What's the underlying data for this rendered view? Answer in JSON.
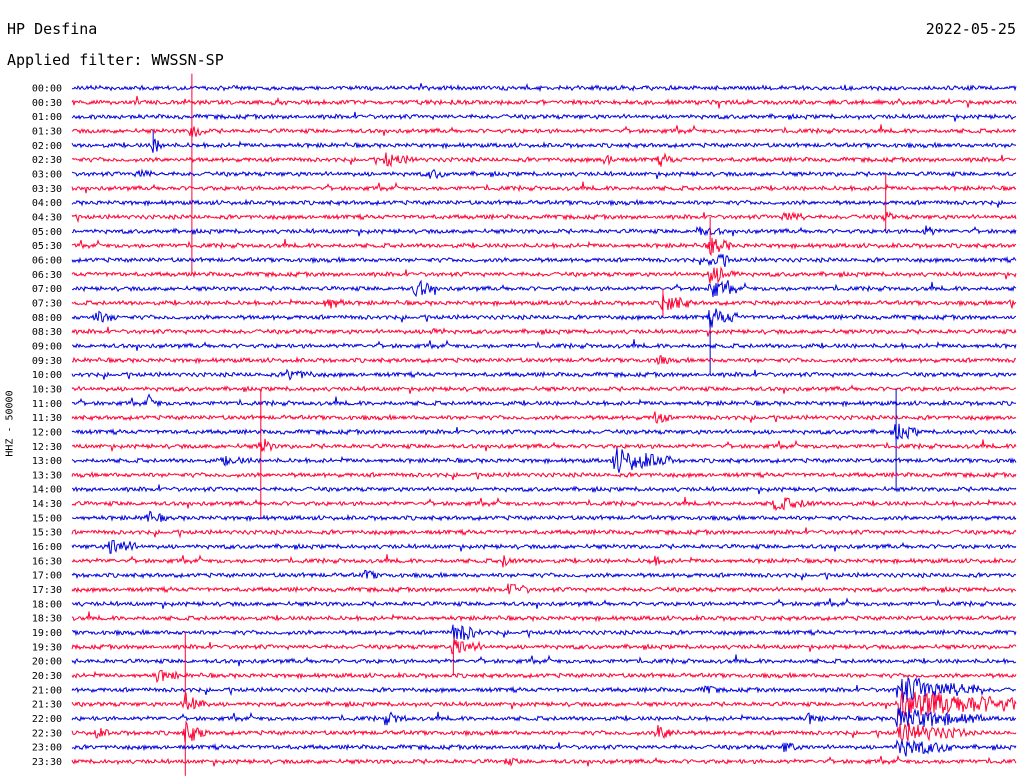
{
  "header": {
    "station": "HP Desfina",
    "filter": "Applied filter: WWSSN-SP",
    "date": "2022-05-25"
  },
  "chart_data": {
    "type": "line",
    "subtype": "helicorder",
    "channel_label": "HHZ - 50000",
    "row_labels": [
      "00:00",
      "00:30",
      "01:00",
      "01:30",
      "02:00",
      "02:30",
      "03:00",
      "03:30",
      "04:00",
      "04:30",
      "05:00",
      "05:30",
      "06:00",
      "06:30",
      "07:00",
      "07:30",
      "08:00",
      "08:30",
      "09:00",
      "09:30",
      "10:00",
      "10:30",
      "11:00",
      "11:30",
      "12:00",
      "12:30",
      "13:00",
      "13:30",
      "14:00",
      "14:30",
      "15:00",
      "15:30",
      "16:00",
      "16:30",
      "17:00",
      "17:30",
      "18:00",
      "18:30",
      "19:00",
      "19:30",
      "20:00",
      "20:30",
      "21:00",
      "21:30",
      "22:00",
      "22:30",
      "23:00",
      "23:30"
    ],
    "colors": [
      "#0000dd",
      "#ff0033"
    ],
    "color_order": "alternating rows, starting with blue",
    "events": [
      {
        "row": 3,
        "x": 0.127,
        "amp": 1.0,
        "dur": 0.01,
        "spike_up": 4,
        "spike_down": 10
      },
      {
        "row": 4,
        "x": 0.086,
        "amp": 0.9,
        "dur": 0.008,
        "spike_up": 1,
        "spike_down": 0
      },
      {
        "row": 5,
        "x": 0.332,
        "amp": 0.7,
        "dur": 0.02
      },
      {
        "row": 5,
        "x": 0.565,
        "amp": 0.5,
        "dur": 0.01
      },
      {
        "row": 5,
        "x": 0.623,
        "amp": 0.6,
        "dur": 0.01
      },
      {
        "row": 6,
        "x": 0.071,
        "amp": 0.5,
        "dur": 0.01
      },
      {
        "row": 6,
        "x": 0.38,
        "amp": 0.5,
        "dur": 0.01
      },
      {
        "row": 9,
        "x": 0.755,
        "amp": 0.6,
        "dur": 0.015
      },
      {
        "row": 9,
        "x": 0.862,
        "amp": 0.8,
        "dur": 0.005,
        "spike_up": 3,
        "spike_down": 1
      },
      {
        "row": 10,
        "x": 0.66,
        "amp": 0.5,
        "dur": 0.02
      },
      {
        "row": 10,
        "x": 0.904,
        "amp": 0.5,
        "dur": 0.01
      },
      {
        "row": 11,
        "x": 0.676,
        "amp": 1.0,
        "dur": 0.015,
        "spike_up": 2,
        "spike_down": 0
      },
      {
        "row": 12,
        "x": 0.676,
        "amp": 1.0,
        "dur": 0.015
      },
      {
        "row": 13,
        "x": 0.676,
        "amp": 1.0,
        "dur": 0.02
      },
      {
        "row": 14,
        "x": 0.364,
        "amp": 1.0,
        "dur": 0.015
      },
      {
        "row": 14,
        "x": 0.676,
        "amp": 1.0,
        "dur": 0.02
      },
      {
        "row": 15,
        "x": 0.268,
        "amp": 0.8,
        "dur": 0.015
      },
      {
        "row": 15,
        "x": 0.626,
        "amp": 1.0,
        "dur": 0.02,
        "spike_up": 1,
        "spike_down": 1
      },
      {
        "row": 15,
        "x": 0.996,
        "amp": 0.6,
        "dur": 0.01
      },
      {
        "row": 16,
        "x": 0.025,
        "amp": 0.6,
        "dur": 0.015
      },
      {
        "row": 16,
        "x": 0.676,
        "amp": 1.0,
        "dur": 0.02,
        "spike_up": 0,
        "spike_down": 4
      },
      {
        "row": 17,
        "x": 0.38,
        "amp": 0.4,
        "dur": 0.01
      },
      {
        "row": 19,
        "x": 0.62,
        "amp": 0.5,
        "dur": 0.01
      },
      {
        "row": 20,
        "x": 0.228,
        "amp": 0.5,
        "dur": 0.02
      },
      {
        "row": 22,
        "x": 0.08,
        "amp": 0.6,
        "dur": 0.01
      },
      {
        "row": 23,
        "x": 0.618,
        "amp": 0.7,
        "dur": 0.01
      },
      {
        "row": 24,
        "x": 0.873,
        "amp": 1.0,
        "dur": 0.015,
        "spike_up": 3,
        "spike_down": 4
      },
      {
        "row": 25,
        "x": 0.2,
        "amp": 1.0,
        "dur": 0.01,
        "spike_up": 4,
        "spike_down": 5
      },
      {
        "row": 26,
        "x": 0.575,
        "amp": 1.4,
        "dur": 0.04
      },
      {
        "row": 26,
        "x": 0.16,
        "amp": 0.4,
        "dur": 0.02
      },
      {
        "row": 29,
        "x": 0.742,
        "amp": 0.7,
        "dur": 0.03
      },
      {
        "row": 30,
        "x": 0.078,
        "amp": 0.6,
        "dur": 0.015
      },
      {
        "row": 32,
        "x": 0.04,
        "amp": 1.0,
        "dur": 0.02
      },
      {
        "row": 33,
        "x": 0.456,
        "amp": 0.6,
        "dur": 0.01
      },
      {
        "row": 33,
        "x": 0.614,
        "amp": 0.5,
        "dur": 0.01
      },
      {
        "row": 34,
        "x": 0.31,
        "amp": 0.5,
        "dur": 0.01
      },
      {
        "row": 35,
        "x": 0.464,
        "amp": 0.6,
        "dur": 0.015
      },
      {
        "row": 38,
        "x": 0.404,
        "amp": 1.1,
        "dur": 0.02
      },
      {
        "row": 39,
        "x": 0.404,
        "amp": 1.0,
        "dur": 0.02,
        "spike_up": 0,
        "spike_down": 2
      },
      {
        "row": 41,
        "x": 0.09,
        "amp": 0.6,
        "dur": 0.015
      },
      {
        "row": 42,
        "x": 0.67,
        "amp": 0.5,
        "dur": 0.01
      },
      {
        "row": 42,
        "x": 0.875,
        "amp": 1.5,
        "dur": 0.06
      },
      {
        "row": 43,
        "x": 0.12,
        "amp": 1.4,
        "dur": 0.015,
        "spike_up": 5,
        "spike_down": 0
      },
      {
        "row": 43,
        "x": 0.875,
        "amp": 1.5,
        "dur": 0.12
      },
      {
        "row": 44,
        "x": 0.332,
        "amp": 0.6,
        "dur": 0.015
      },
      {
        "row": 44,
        "x": 0.78,
        "amp": 0.5,
        "dur": 0.01
      },
      {
        "row": 44,
        "x": 0.875,
        "amp": 1.2,
        "dur": 0.06
      },
      {
        "row": 45,
        "x": 0.12,
        "amp": 1.2,
        "dur": 0.015,
        "spike_up": 0,
        "spike_down": 3
      },
      {
        "row": 45,
        "x": 0.025,
        "amp": 0.5,
        "dur": 0.01
      },
      {
        "row": 45,
        "x": 0.62,
        "amp": 0.8,
        "dur": 0.015
      },
      {
        "row": 45,
        "x": 0.875,
        "amp": 1.1,
        "dur": 0.05
      },
      {
        "row": 46,
        "x": 0.755,
        "amp": 0.6,
        "dur": 0.01
      },
      {
        "row": 46,
        "x": 0.875,
        "amp": 1.0,
        "dur": 0.04
      },
      {
        "row": 47,
        "x": 0.46,
        "amp": 0.3,
        "dur": 0.01
      }
    ]
  }
}
